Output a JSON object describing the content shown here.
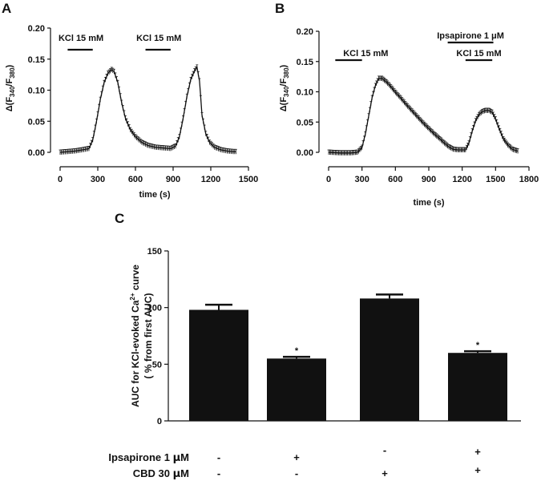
{
  "panels": {
    "a": "A",
    "b": "B",
    "c": "C"
  },
  "chart_data": [
    {
      "id": "A",
      "type": "line",
      "xlabel": "time (s)",
      "ylabel_main": "Δ(F",
      "ylabel_sub1": "340",
      "ylabel_mid": "/F",
      "ylabel_sub2": "380",
      "ylabel_end": ")",
      "xlim": [
        0,
        1500
      ],
      "ylim": [
        0,
        0.2
      ],
      "xticks": [
        0,
        300,
        600,
        900,
        1200,
        1500
      ],
      "yticks": [
        "0.00",
        "0.05",
        "0.10",
        "0.15",
        "0.20"
      ],
      "bars": [
        {
          "label": "KCl 15 mM",
          "x0": 60,
          "x1": 260
        },
        {
          "label": "KCl 15 mM",
          "x0": 680,
          "x1": 880
        }
      ],
      "x": [
        0,
        60,
        120,
        180,
        230,
        260,
        290,
        320,
        350,
        380,
        410,
        430,
        460,
        490,
        520,
        560,
        600,
        650,
        700,
        760,
        820,
        880,
        920,
        950,
        980,
        1010,
        1040,
        1070,
        1090,
        1110,
        1130,
        1160,
        1190,
        1230,
        1280,
        1330,
        1380,
        1400
      ],
      "y": [
        0.0,
        0.001,
        0.002,
        0.004,
        0.006,
        0.02,
        0.05,
        0.085,
        0.112,
        0.127,
        0.133,
        0.13,
        0.112,
        0.08,
        0.055,
        0.036,
        0.025,
        0.016,
        0.011,
        0.008,
        0.007,
        0.006,
        0.01,
        0.025,
        0.055,
        0.09,
        0.117,
        0.131,
        0.137,
        0.115,
        0.06,
        0.03,
        0.016,
        0.008,
        0.004,
        0.002,
        0.001,
        0.001
      ]
    },
    {
      "id": "B",
      "type": "line",
      "xlabel": "time (s)",
      "ylabel_main": "Δ(F",
      "ylabel_sub1": "340",
      "ylabel_mid": "/F",
      "ylabel_sub2": "380",
      "ylabel_end": ")",
      "xlim": [
        0,
        1800
      ],
      "ylim": [
        0,
        0.2
      ],
      "xticks": [
        0,
        300,
        600,
        900,
        1200,
        1500,
        1800
      ],
      "yticks": [
        "0.00",
        "0.05",
        "0.10",
        "0.15",
        "0.20"
      ],
      "bars": [
        {
          "label": "KCl 15 mM",
          "x0": 60,
          "x1": 300
        },
        {
          "label": "Ipsapirone 1 μM",
          "x0": 1070,
          "x1": 1480
        },
        {
          "label": "KCl 15 mM",
          "x0": 1230,
          "x1": 1470
        }
      ],
      "x": [
        0,
        100,
        200,
        260,
        300,
        330,
        360,
        390,
        420,
        450,
        480,
        520,
        560,
        600,
        650,
        700,
        750,
        800,
        850,
        900,
        950,
        1000,
        1040,
        1080,
        1120,
        1160,
        1200,
        1230,
        1260,
        1290,
        1320,
        1350,
        1380,
        1410,
        1440,
        1470,
        1500,
        1530,
        1570,
        1610,
        1650,
        1680,
        1700
      ],
      "y": [
        0.0,
        -0.001,
        -0.001,
        0.0,
        0.008,
        0.03,
        0.06,
        0.09,
        0.11,
        0.122,
        0.122,
        0.116,
        0.108,
        0.099,
        0.089,
        0.078,
        0.068,
        0.058,
        0.048,
        0.039,
        0.03,
        0.022,
        0.015,
        0.009,
        0.005,
        0.004,
        0.004,
        0.004,
        0.015,
        0.035,
        0.052,
        0.062,
        0.067,
        0.069,
        0.069,
        0.066,
        0.055,
        0.04,
        0.022,
        0.012,
        0.005,
        0.003,
        0.002
      ]
    },
    {
      "id": "C",
      "type": "bar",
      "title": "",
      "ylabel_line1_pre": "AUC for KCl-evoked Ca",
      "ylabel_line1_sup": "2+",
      "ylabel_line1_post": " curve",
      "ylabel_line2": "( % from first AUC)",
      "ylim": [
        0,
        150
      ],
      "yticks": [
        "0",
        "50",
        "100",
        "150"
      ],
      "values": [
        98,
        55,
        108,
        60
      ],
      "errors": [
        4.5,
        1.5,
        3.5,
        1.5
      ],
      "significance": [
        "",
        "*",
        "",
        "*"
      ],
      "conditions": [
        {
          "label_pre": "Ipsapirone 1 ",
          "label_mu": "μ",
          "label_post": "M",
          "signs": [
            "-",
            "+",
            "-",
            "+"
          ]
        },
        {
          "label_pre": "CBD 30 ",
          "label_mu": "μ",
          "label_post": "M",
          "signs": [
            "-",
            "-",
            "+",
            "+"
          ]
        }
      ]
    }
  ]
}
